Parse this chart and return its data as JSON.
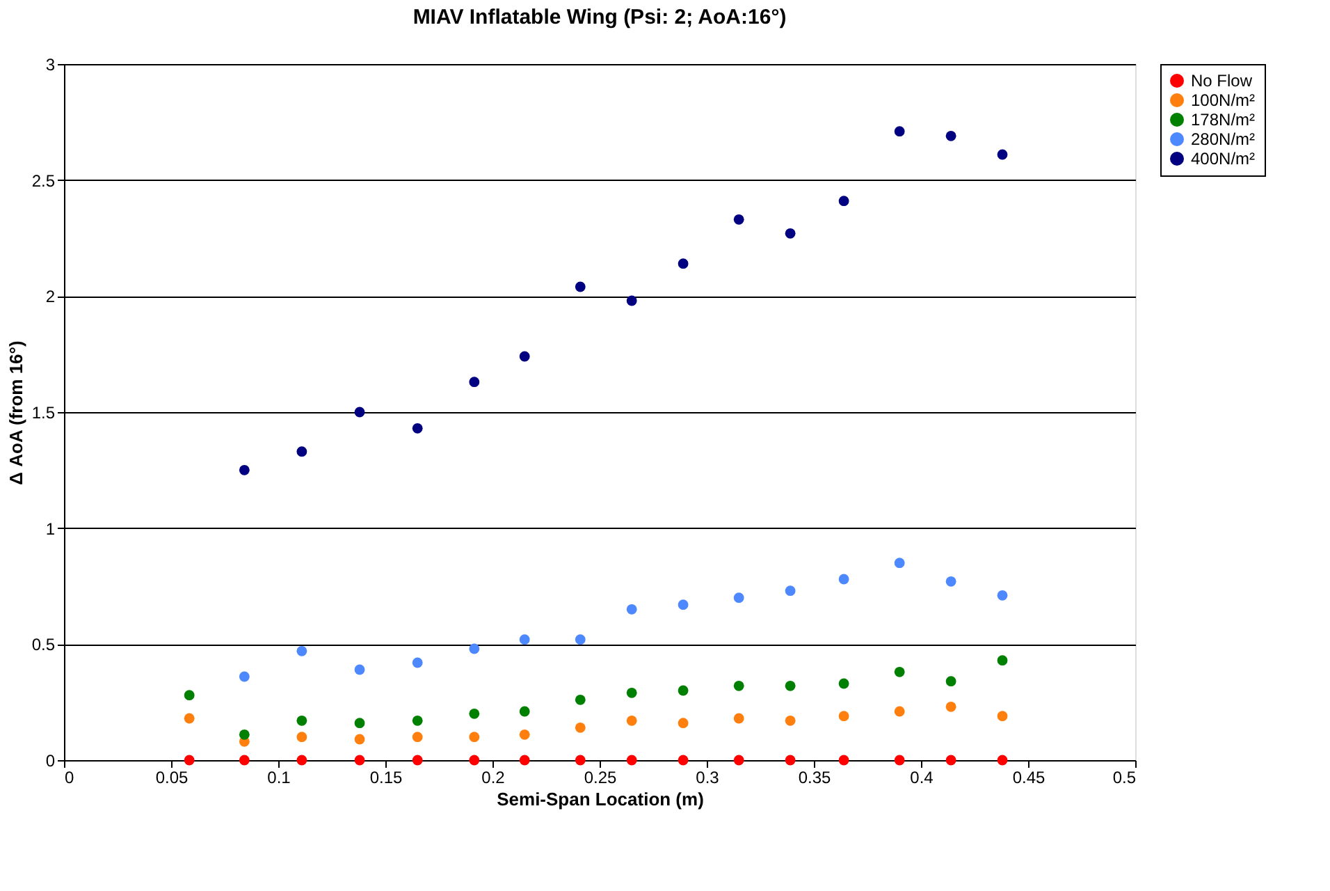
{
  "chart_data": {
    "type": "scatter",
    "title": "MIAV Inflatable Wing (Psi: 2; AoA:16°)",
    "xlabel": "Semi-Span Location (m)",
    "ylabel": "Δ AoA (from 16°)",
    "x": [
      0.0585,
      0.0842,
      0.111,
      0.138,
      0.165,
      0.1915,
      0.215,
      0.241,
      0.265,
      0.289,
      0.315,
      0.339,
      0.364,
      0.39,
      0.414,
      0.438
    ],
    "series": [
      {
        "name": "No Flow",
        "color": "#ff0000",
        "values": [
          0,
          0,
          0,
          0,
          0,
          0,
          0,
          0,
          0,
          0,
          0,
          0,
          0,
          0,
          0,
          0
        ]
      },
      {
        "name": "100N/m²",
        "color": "#ff7f0e",
        "values": [
          0.18,
          0.08,
          0.1,
          0.09,
          0.1,
          0.1,
          0.11,
          0.14,
          0.17,
          0.16,
          0.18,
          0.17,
          0.19,
          0.21,
          0.23,
          0.19
        ]
      },
      {
        "name": "178N/m²",
        "color": "#008000",
        "values": [
          0.28,
          0.11,
          0.17,
          0.16,
          0.17,
          0.2,
          0.21,
          0.26,
          0.29,
          0.3,
          0.32,
          0.32,
          0.33,
          0.38,
          0.34,
          0.43
        ]
      },
      {
        "name": "280N/m²",
        "color": "#4d88ff",
        "values": [
          null,
          0.36,
          0.47,
          0.39,
          0.42,
          0.48,
          0.52,
          0.52,
          0.65,
          0.67,
          0.7,
          0.73,
          0.78,
          0.85,
          0.77,
          0.71
        ]
      },
      {
        "name": "400N/m²",
        "color": "#000080",
        "values": [
          null,
          1.25,
          1.33,
          1.5,
          1.43,
          1.63,
          1.74,
          2.04,
          1.98,
          2.14,
          2.33,
          2.27,
          2.41,
          2.71,
          2.69,
          2.61
        ]
      }
    ],
    "xlim": [
      0,
      0.5
    ],
    "xticks": [
      0,
      0.05,
      0.1,
      0.15,
      0.2,
      0.25,
      0.3,
      0.35,
      0.4,
      0.45,
      0.5
    ],
    "ylim": [
      0,
      3
    ],
    "yticks": [
      0,
      0.5,
      1,
      1.5,
      2,
      2.5,
      3
    ],
    "grid": "y",
    "legend": "right",
    "marker": "circle"
  }
}
